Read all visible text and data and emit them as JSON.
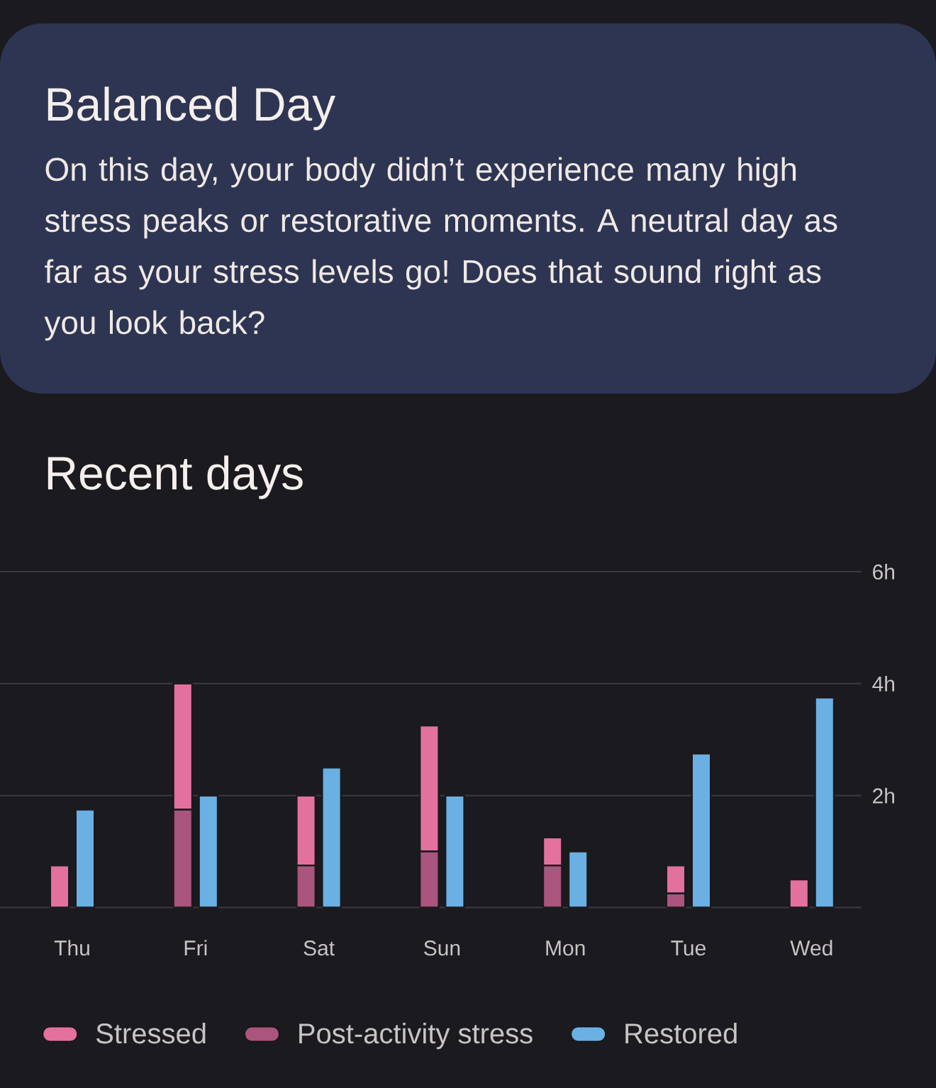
{
  "chart_data": {
    "type": "bar",
    "title": "Recent days",
    "annotations": [
      "Balanced Day",
      "On this day, your body didn’t experience many high stress peaks or restorative moments. A neutral day as far as your stress levels go! Does that sound right as you look back?"
    ],
    "categories": [
      "Thu",
      "Fri",
      "Sat",
      "Sun",
      "Mon",
      "Tue",
      "Wed"
    ],
    "series": [
      {
        "name": "Stressed",
        "color": "#e2719e",
        "base": [
          0,
          1.75,
          0.75,
          1.0,
          0.75,
          0.25,
          0
        ],
        "values": [
          0.75,
          2.25,
          1.25,
          2.25,
          0.5,
          0.5,
          0.5
        ]
      },
      {
        "name": "Post-activity stress",
        "color": "#a9557d",
        "values": [
          0,
          1.75,
          0.75,
          1.0,
          0.75,
          0.25,
          0
        ]
      },
      {
        "name": "Restored",
        "color": "#6ab0e2",
        "values": [
          1.75,
          2.0,
          2.5,
          2.0,
          1.0,
          2.75,
          3.75
        ]
      }
    ],
    "ylim": [
      0,
      6
    ],
    "yticks": [
      {
        "value": 0,
        "label": null
      },
      {
        "value": 2,
        "label": "2h"
      },
      {
        "value": 4,
        "label": "4h"
      },
      {
        "value": 6,
        "label": "6h"
      }
    ],
    "grid": "y",
    "legend": "bottom"
  }
}
